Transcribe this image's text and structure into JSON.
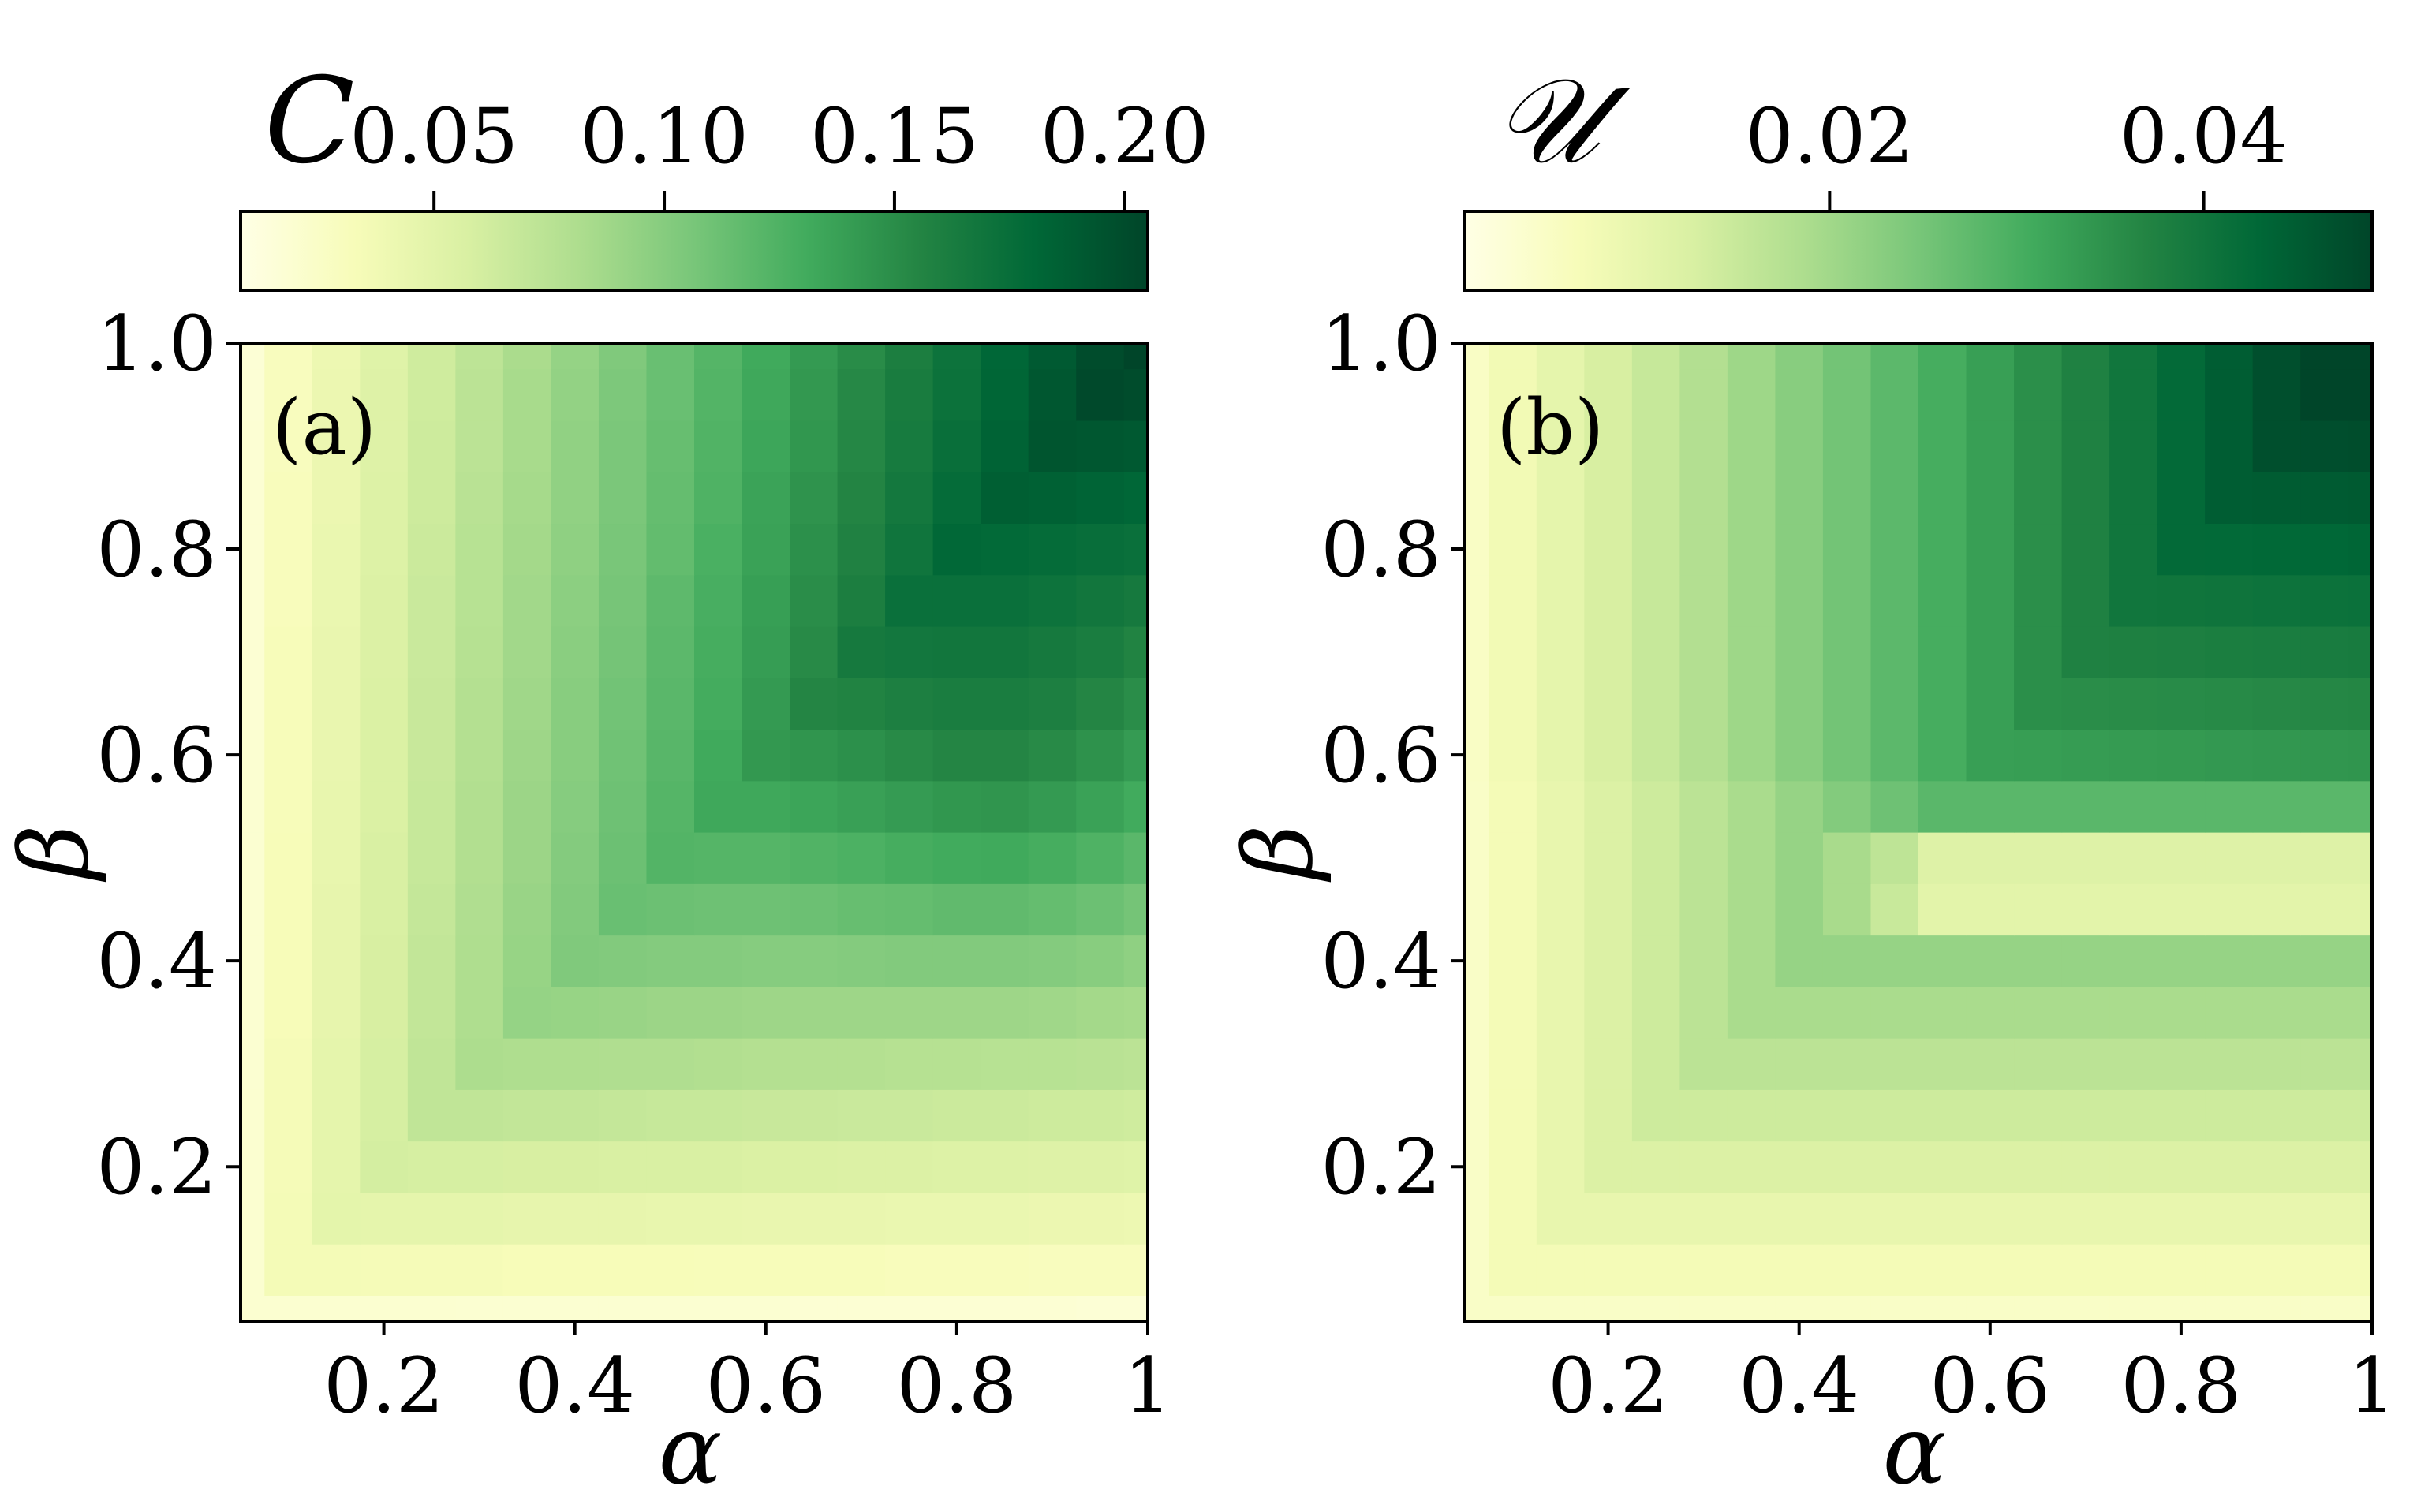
{
  "chart_data": [
    {
      "type": "heatmap",
      "panel_label": "(a)",
      "xlabel": "α",
      "ylabel": "β",
      "xlim": [
        0.05,
        1.0
      ],
      "ylim": [
        0.05,
        1.0
      ],
      "x_ticks": [
        0.2,
        0.4,
        0.6,
        0.8,
        1.0
      ],
      "x_tick_labels": [
        "0.2",
        "0.4",
        "0.6",
        "0.8",
        "1"
      ],
      "y_ticks": [
        0.2,
        0.4,
        0.6,
        0.8,
        1.0
      ],
      "y_tick_labels": [
        "0.2",
        "0.4",
        "0.6",
        "0.8",
        "1.0"
      ],
      "x": [
        0.05,
        0.1,
        0.15,
        0.2,
        0.25,
        0.3,
        0.35,
        0.4,
        0.45,
        0.5,
        0.55,
        0.6,
        0.65,
        0.7,
        0.75,
        0.8,
        0.85,
        0.9,
        0.95,
        1.0
      ],
      "y": [
        0.05,
        0.1,
        0.15,
        0.2,
        0.25,
        0.3,
        0.35,
        0.4,
        0.45,
        0.5,
        0.55,
        0.6,
        0.65,
        0.7,
        0.75,
        0.8,
        0.85,
        0.9,
        0.95,
        1.0
      ],
      "colorbar": {
        "label": "C",
        "colormap": "YlGn",
        "range": [
          0.008,
          0.205
        ],
        "ticks": [
          0.05,
          0.1,
          0.15,
          0.2
        ],
        "tick_labels": [
          "0.05",
          "0.10",
          "0.15",
          "0.20"
        ]
      },
      "grid": false
    },
    {
      "type": "heatmap",
      "panel_label": "(b)",
      "xlabel": "α",
      "ylabel": "β",
      "xlim": [
        0.05,
        1.0
      ],
      "ylim": [
        0.05,
        1.0
      ],
      "x_ticks": [
        0.2,
        0.4,
        0.6,
        0.8,
        1.0
      ],
      "x_tick_labels": [
        "0.2",
        "0.4",
        "0.6",
        "0.8",
        "1"
      ],
      "y_ticks": [
        0.2,
        0.4,
        0.6,
        0.8,
        1.0
      ],
      "y_tick_labels": [
        "0.2",
        "0.4",
        "0.6",
        "0.8",
        "1.0"
      ],
      "x": [
        0.05,
        0.1,
        0.15,
        0.2,
        0.25,
        0.3,
        0.35,
        0.4,
        0.45,
        0.5,
        0.55,
        0.6,
        0.65,
        0.7,
        0.75,
        0.8,
        0.85,
        0.9,
        0.95,
        1.0
      ],
      "y": [
        0.05,
        0.1,
        0.15,
        0.2,
        0.25,
        0.3,
        0.35,
        0.4,
        0.45,
        0.5,
        0.55,
        0.6,
        0.65,
        0.7,
        0.75,
        0.8,
        0.85,
        0.9,
        0.95,
        1.0
      ],
      "colorbar": {
        "label": "𝒰",
        "colormap": "YlGn",
        "range": [
          0.0005,
          0.049
        ],
        "ticks": [
          0.02,
          0.04
        ],
        "tick_labels": [
          "0.02",
          "0.04"
        ]
      },
      "grid": false
    }
  ]
}
